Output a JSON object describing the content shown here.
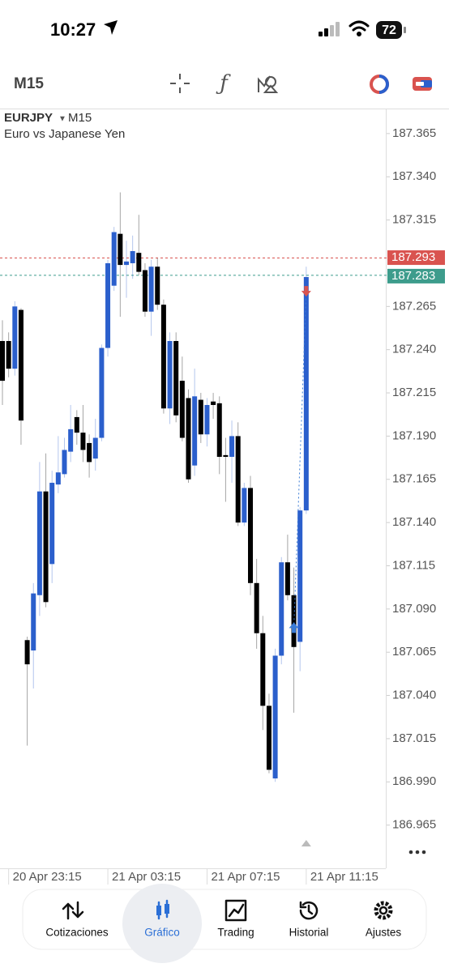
{
  "status": {
    "time": "10:27",
    "battery": "72"
  },
  "toolbar": {
    "timeframe": "M15"
  },
  "chart_data": {
    "type": "candlestick",
    "symbol": "EURJPY",
    "timeframe": "M15",
    "description": "Euro vs Japanese Yen",
    "ylim": [
      186.94,
      187.379
    ],
    "yticks": [
      187.365,
      {
        "value": 187.34,
        "label": "187.340"
      },
      187.315,
      187.265,
      {
        "value": 187.24,
        "label": "187.240"
      },
      187.215,
      {
        "value": 187.19,
        "label": "187.190"
      },
      187.165,
      {
        "value": 187.14,
        "label": "187.140"
      },
      187.115,
      {
        "value": 187.09,
        "label": "187.090"
      },
      187.065,
      {
        "value": 187.04,
        "label": "187.040"
      },
      187.015,
      {
        "value": 186.99,
        "label": "186.990"
      },
      186.965
    ],
    "xticks": [
      {
        "value": 1,
        "label": "20 Apr 23:15"
      },
      {
        "value": 17,
        "label": "21 Apr 03:15"
      },
      {
        "value": 33,
        "label": "21 Apr 07:15"
      },
      {
        "value": 49,
        "label": "21 Apr 11:15"
      }
    ],
    "up_color": "#2b5fcc",
    "down_color": "#000000",
    "open": [
      187.245,
      187.245,
      187.229,
      187.263,
      187.072,
      187.066,
      187.098,
      187.158,
      187.116,
      187.162,
      187.168,
      187.181,
      187.201,
      187.192,
      187.186,
      187.177,
      187.189,
      187.241,
      187.277,
      187.307,
      187.289,
      187.29,
      187.296,
      187.286,
      187.262,
      187.288,
      187.266,
      187.206,
      187.245,
      187.222,
      187.212,
      187.173,
      187.211,
      187.191,
      187.21,
      187.209,
      187.179,
      187.178,
      187.19,
      187.14,
      187.16,
      187.105,
      187.076,
      187.034,
      186.992,
      187.063,
      187.117,
      187.098,
      187.071,
      187.147
    ],
    "high": [
      187.257,
      187.25,
      187.268,
      187.264,
      187.074,
      187.105,
      187.175,
      187.18,
      187.17,
      187.19,
      187.189,
      187.208,
      187.205,
      187.208,
      187.191,
      187.2,
      187.243,
      187.292,
      187.311,
      187.331,
      187.303,
      187.306,
      187.318,
      187.29,
      187.292,
      187.293,
      187.269,
      187.25,
      187.25,
      187.236,
      187.217,
      187.229,
      187.215,
      187.212,
      187.215,
      187.213,
      187.189,
      187.199,
      187.198,
      187.163,
      187.167,
      187.119,
      187.086,
      187.041,
      187.067,
      187.12,
      187.133,
      187.114,
      187.149,
      187.288
    ],
    "low": [
      187.208,
      187.224,
      187.225,
      187.185,
      187.011,
      187.044,
      187.086,
      187.091,
      187.105,
      187.157,
      187.166,
      187.175,
      187.185,
      187.175,
      187.166,
      187.17,
      187.187,
      187.236,
      187.274,
      187.259,
      187.27,
      187.281,
      187.283,
      187.259,
      187.248,
      187.263,
      187.203,
      187.197,
      187.198,
      187.187,
      187.163,
      187.167,
      187.186,
      187.184,
      187.2,
      187.168,
      187.152,
      187.163,
      187.138,
      187.138,
      187.098,
      187.067,
      187.02,
      186.995,
      186.99,
      187.058,
      187.095,
      187.03,
      187.054,
      187.145
    ],
    "close": [
      187.222,
      187.229,
      187.265,
      187.199,
      187.058,
      187.099,
      187.158,
      187.094,
      187.163,
      187.169,
      187.182,
      187.194,
      187.192,
      187.182,
      187.175,
      187.189,
      187.241,
      187.29,
      187.308,
      187.289,
      187.291,
      187.297,
      187.285,
      187.262,
      187.288,
      187.266,
      187.206,
      187.245,
      187.202,
      187.189,
      187.165,
      187.213,
      187.191,
      187.208,
      187.208,
      187.178,
      187.178,
      187.19,
      187.14,
      187.16,
      187.105,
      187.076,
      187.034,
      186.997,
      187.063,
      187.117,
      187.098,
      187.068,
      187.147,
      187.282
    ],
    "price_lines": [
      {
        "value": 187.293,
        "label": "187.293",
        "color": "#d9534f"
      },
      {
        "value": 187.283,
        "label": "187.283",
        "color": "#3d9c8c"
      }
    ],
    "trades": [
      {
        "index": 47,
        "price": 187.079,
        "color": "#3a7bd5"
      },
      {
        "index": 49,
        "price": 187.274,
        "color": "#d9534f"
      }
    ]
  },
  "nav": {
    "items": [
      "Cotizaciones",
      "Gráfico",
      "Trading",
      "Historial",
      "Ajustes"
    ],
    "active": 1
  }
}
